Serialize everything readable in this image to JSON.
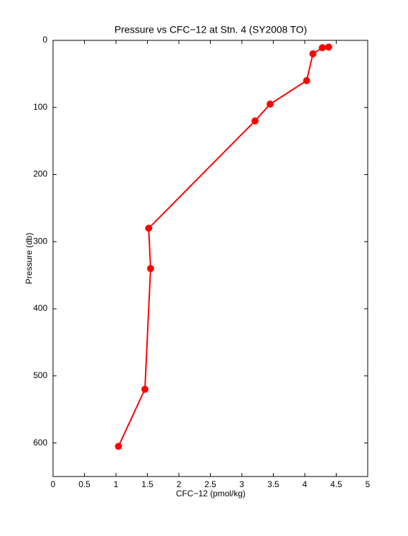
{
  "chart_data": {
    "type": "line",
    "title": "Pressure vs CFC−12 at Stn. 4 (SY2008 TO)",
    "x_label": "CFC−12 (pmol/kg)",
    "y_label": "Pressure (db)",
    "x": [
      4.38,
      4.28,
      4.13,
      4.03,
      3.45,
      3.21,
      1.52,
      1.55,
      1.46,
      1.04
    ],
    "series": [
      {
        "color": "#ff0000",
        "values": [
          10,
          11,
          20,
          60,
          95,
          120,
          280,
          340,
          520,
          605
        ]
      }
    ],
    "xlim": [
      0,
      5
    ],
    "xticks": [
      0,
      0.5,
      1,
      1.5,
      2,
      2.5,
      3,
      3.5,
      4,
      4.5,
      5
    ],
    "ylim": [
      0,
      650
    ],
    "yticks": [
      0,
      100,
      200,
      300,
      400,
      500,
      600
    ],
    "y_reversed": true,
    "grid": false
  }
}
